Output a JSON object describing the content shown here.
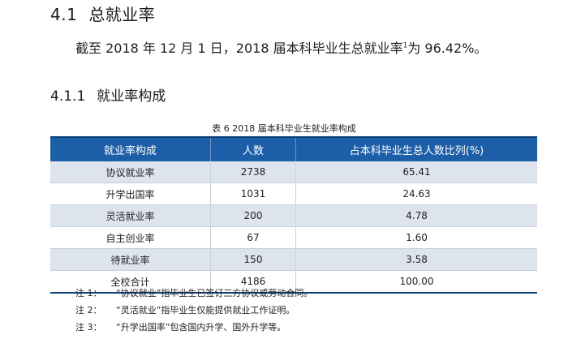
{
  "section": {
    "number": "4.1",
    "title": "总就业率"
  },
  "paragraph": {
    "before": "截至 2018 年 12 月 1 日，2018 届本科毕业生总就业率",
    "sup": "1",
    "after": "为 96.42%。"
  },
  "subsection": {
    "number": "4.1.1",
    "title": "就业率构成"
  },
  "table": {
    "caption": "表 6 2018  届本科毕业生就业率构成",
    "headers": [
      "就业率构成",
      "人数",
      "占本科毕业生总人数比列(%)"
    ],
    "rows": [
      [
        "协议就业率",
        "2738",
        "65.41"
      ],
      [
        "升学出国率",
        "1031",
        "24.63"
      ],
      [
        "灵活就业率",
        "200",
        "4.78"
      ],
      [
        "自主创业率",
        "67",
        "1.60"
      ],
      [
        "待就业率",
        "150",
        "3.58"
      ],
      [
        "全校合计",
        "4186",
        "100.00"
      ]
    ]
  },
  "notes": [
    {
      "label": "注 1：",
      "text": "“协议就业”指毕业生已签订三方协议或劳动合同。"
    },
    {
      "label": "注 2：",
      "text": "“灵活就业”指毕业生仅能提供就业工作证明。"
    },
    {
      "label": "注 3：",
      "text": "“升学出国率”包含国内升学、国外升学等。"
    }
  ],
  "colors": {
    "header_bg": "#1c5fa8",
    "stripe_bg": "#dde4ee",
    "rule": "#0d3f7a"
  }
}
